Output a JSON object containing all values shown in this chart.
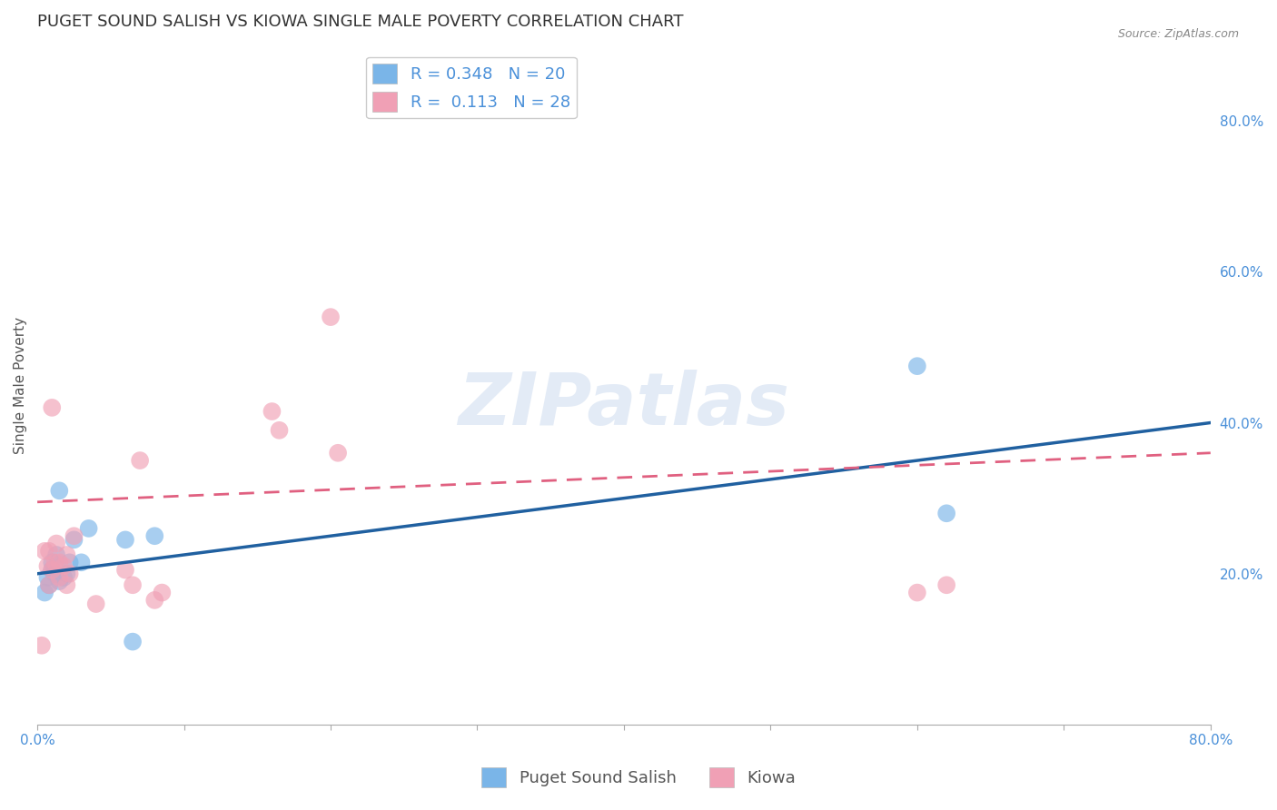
{
  "title": "PUGET SOUND SALISH VS KIOWA SINGLE MALE POVERTY CORRELATION CHART",
  "source": "Source: ZipAtlas.com",
  "ylabel": "Single Male Poverty",
  "xlabel": "",
  "watermark": "ZIPatlas",
  "xlim": [
    0.0,
    0.8
  ],
  "ylim": [
    0.0,
    0.9
  ],
  "blue_color": "#4a90d9",
  "blue_scatter_color": "#7ab5e8",
  "pink_scatter_color": "#f0a0b5",
  "blue_line_color": "#2060a0",
  "pink_line_color": "#e06080",
  "background_color": "#ffffff",
  "grid_color": "#cccccc",
  "title_fontsize": 13,
  "axis_label_fontsize": 11,
  "tick_fontsize": 11,
  "blue_scatter_x": [
    0.005,
    0.007,
    0.008,
    0.01,
    0.01,
    0.012,
    0.013,
    0.015,
    0.015,
    0.018,
    0.02,
    0.022,
    0.025,
    0.03,
    0.035,
    0.06,
    0.065,
    0.08,
    0.6,
    0.62
  ],
  "blue_scatter_y": [
    0.175,
    0.195,
    0.185,
    0.205,
    0.215,
    0.2,
    0.225,
    0.19,
    0.31,
    0.195,
    0.2,
    0.215,
    0.245,
    0.215,
    0.26,
    0.245,
    0.11,
    0.25,
    0.475,
    0.28
  ],
  "pink_scatter_x": [
    0.003,
    0.005,
    0.007,
    0.008,
    0.008,
    0.01,
    0.01,
    0.012,
    0.013,
    0.015,
    0.015,
    0.018,
    0.02,
    0.02,
    0.022,
    0.025,
    0.04,
    0.06,
    0.065,
    0.07,
    0.08,
    0.085,
    0.16,
    0.165,
    0.2,
    0.205,
    0.6,
    0.62
  ],
  "pink_scatter_y": [
    0.105,
    0.23,
    0.21,
    0.185,
    0.23,
    0.205,
    0.42,
    0.215,
    0.24,
    0.195,
    0.215,
    0.21,
    0.185,
    0.225,
    0.2,
    0.25,
    0.16,
    0.205,
    0.185,
    0.35,
    0.165,
    0.175,
    0.415,
    0.39,
    0.54,
    0.36,
    0.175,
    0.185
  ],
  "blue_line_x": [
    0.0,
    0.8
  ],
  "blue_line_y": [
    0.2,
    0.4
  ],
  "pink_line_x": [
    0.0,
    0.8
  ],
  "pink_line_y": [
    0.295,
    0.36
  ]
}
